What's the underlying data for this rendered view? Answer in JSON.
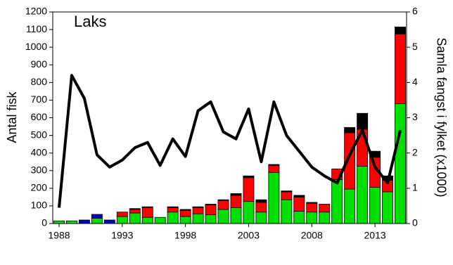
{
  "chart_data": {
    "type": "bar",
    "stacked": true,
    "annotation": "Laks",
    "ylabel": "Antal fisk",
    "y2label": "Samla fangst i fylket (x1000)",
    "categories": [
      "1988",
      null,
      null,
      null,
      null,
      "1993",
      null,
      null,
      null,
      null,
      "1998",
      null,
      null,
      null,
      null,
      "2003",
      null,
      null,
      null,
      null,
      "2008",
      null,
      null,
      null,
      null,
      "2013",
      null,
      null
    ],
    "series": [
      {
        "color": "#00e000",
        "values": [
          15,
          15,
          0,
          30,
          0,
          40,
          60,
          35,
          35,
          65,
          40,
          55,
          50,
          80,
          90,
          125,
          65,
          290,
          135,
          70,
          65,
          65,
          250,
          195,
          325,
          205,
          180,
          680
        ]
      },
      {
        "color": "#ff0000",
        "values": [
          0,
          0,
          0,
          0,
          0,
          25,
          20,
          55,
          0,
          25,
          35,
          35,
          55,
          50,
          70,
          135,
          55,
          40,
          45,
          80,
          50,
          45,
          60,
          320,
          210,
          170,
          65,
          395
        ]
      },
      {
        "color": "#000000",
        "values": [
          0,
          0,
          0,
          0,
          0,
          0,
          5,
          5,
          0,
          5,
          5,
          5,
          5,
          5,
          10,
          10,
          15,
          5,
          5,
          10,
          5,
          0,
          0,
          30,
          90,
          35,
          25,
          40
        ]
      },
      {
        "color": "#0000cc",
        "values": [
          0,
          0,
          20,
          22,
          20,
          0,
          0,
          0,
          0,
          0,
          0,
          0,
          0,
          0,
          0,
          0,
          0,
          0,
          0,
          0,
          0,
          0,
          0,
          0,
          0,
          0,
          0,
          0
        ]
      },
      {
        "type": "line",
        "axis": "y2",
        "color": "#000000",
        "values": [
          0.45,
          4.2,
          3.55,
          1.95,
          1.6,
          1.8,
          2.15,
          2.3,
          1.65,
          2.4,
          1.9,
          3.2,
          3.45,
          2.6,
          2.4,
          3.25,
          1.75,
          3.45,
          2.5,
          2.05,
          1.6,
          1.35,
          1.15,
          1.95,
          2.65,
          1.6,
          1.15,
          2.65
        ]
      }
    ],
    "ylim": [
      0,
      1200
    ],
    "yticks": [
      0,
      100,
      200,
      300,
      400,
      500,
      600,
      700,
      800,
      900,
      1000,
      1100,
      1200
    ],
    "y2lim": [
      0,
      6
    ],
    "y2ticks": [
      0,
      1,
      2,
      3,
      4,
      5,
      6
    ]
  }
}
